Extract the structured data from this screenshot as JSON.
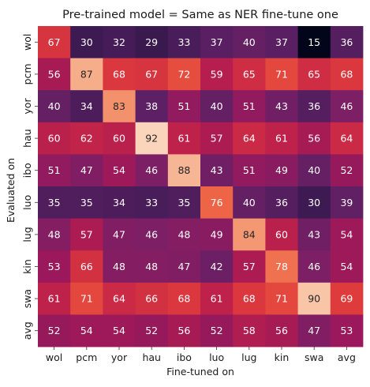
{
  "chart_data": {
    "type": "heatmap",
    "title": "Pre-trained model = Same as NER fine-tune one",
    "xlabel": "Fine-tuned on",
    "ylabel": "Evaluated on",
    "x_categories": [
      "wol",
      "pcm",
      "yor",
      "hau",
      "ibo",
      "luo",
      "lug",
      "kin",
      "swa",
      "avg"
    ],
    "y_categories": [
      "wol",
      "pcm",
      "yor",
      "hau",
      "ibo",
      "luo",
      "lug",
      "kin",
      "swa",
      "avg"
    ],
    "values": [
      [
        67,
        30,
        32,
        29,
        33,
        37,
        40,
        37,
        15,
        36
      ],
      [
        56,
        87,
        68,
        67,
        72,
        59,
        65,
        71,
        65,
        68
      ],
      [
        40,
        34,
        83,
        38,
        51,
        40,
        51,
        43,
        36,
        46
      ],
      [
        60,
        62,
        60,
        92,
        61,
        57,
        64,
        61,
        56,
        64
      ],
      [
        51,
        47,
        54,
        46,
        88,
        43,
        51,
        49,
        40,
        52
      ],
      [
        35,
        35,
        34,
        33,
        35,
        76,
        40,
        36,
        30,
        39
      ],
      [
        48,
        57,
        47,
        46,
        48,
        49,
        84,
        60,
        43,
        54
      ],
      [
        53,
        66,
        48,
        48,
        47,
        42,
        57,
        78,
        46,
        54
      ],
      [
        61,
        71,
        64,
        66,
        68,
        61,
        68,
        71,
        90,
        69
      ],
      [
        52,
        54,
        54,
        52,
        56,
        52,
        58,
        56,
        47,
        53
      ]
    ],
    "colormap": "rocket",
    "value_range": [
      15,
      92
    ],
    "colorbar": false,
    "grid": false
  }
}
